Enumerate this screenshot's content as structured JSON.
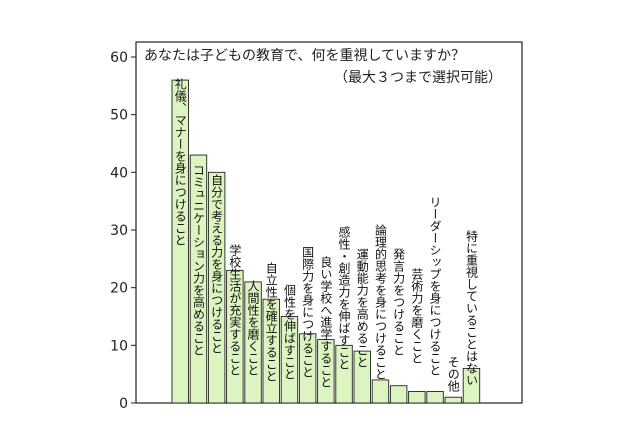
{
  "chart_data": {
    "type": "bar",
    "title": "あなたは子どもの教育で、何を重視していますか？",
    "subtitle": "（最大３つまで選択可能）",
    "xlabel": "",
    "ylabel": "",
    "ylim": [
      0,
      60
    ],
    "yticks": [
      "0",
      "10",
      "20",
      "30",
      "40",
      "50",
      "60"
    ],
    "grid": false,
    "bar_color": "#dcf5c0",
    "categories": [
      "礼儀、マナーを身につけること",
      "コミュニケーション力を高めること",
      "自分で考える力を身につけること",
      "学校生活が充実すること",
      "人間性を磨くこと",
      "自立性を確立すること",
      "個性を伸ばすこと",
      "国際力を身につけること",
      "良い学校へ進学すること",
      "感性・創造力を伸ばすこと",
      "運動能力を高めること",
      "論理的思考を身につけること",
      "発言力をつけること",
      "芸術力を磨くこと",
      "リーダーシップを身につけること",
      "その他",
      "特に重視していることはない"
    ],
    "values": [
      56,
      43,
      40,
      23,
      21,
      18,
      15,
      12,
      11,
      10,
      9,
      4,
      3,
      2,
      2,
      1,
      6
    ]
  }
}
